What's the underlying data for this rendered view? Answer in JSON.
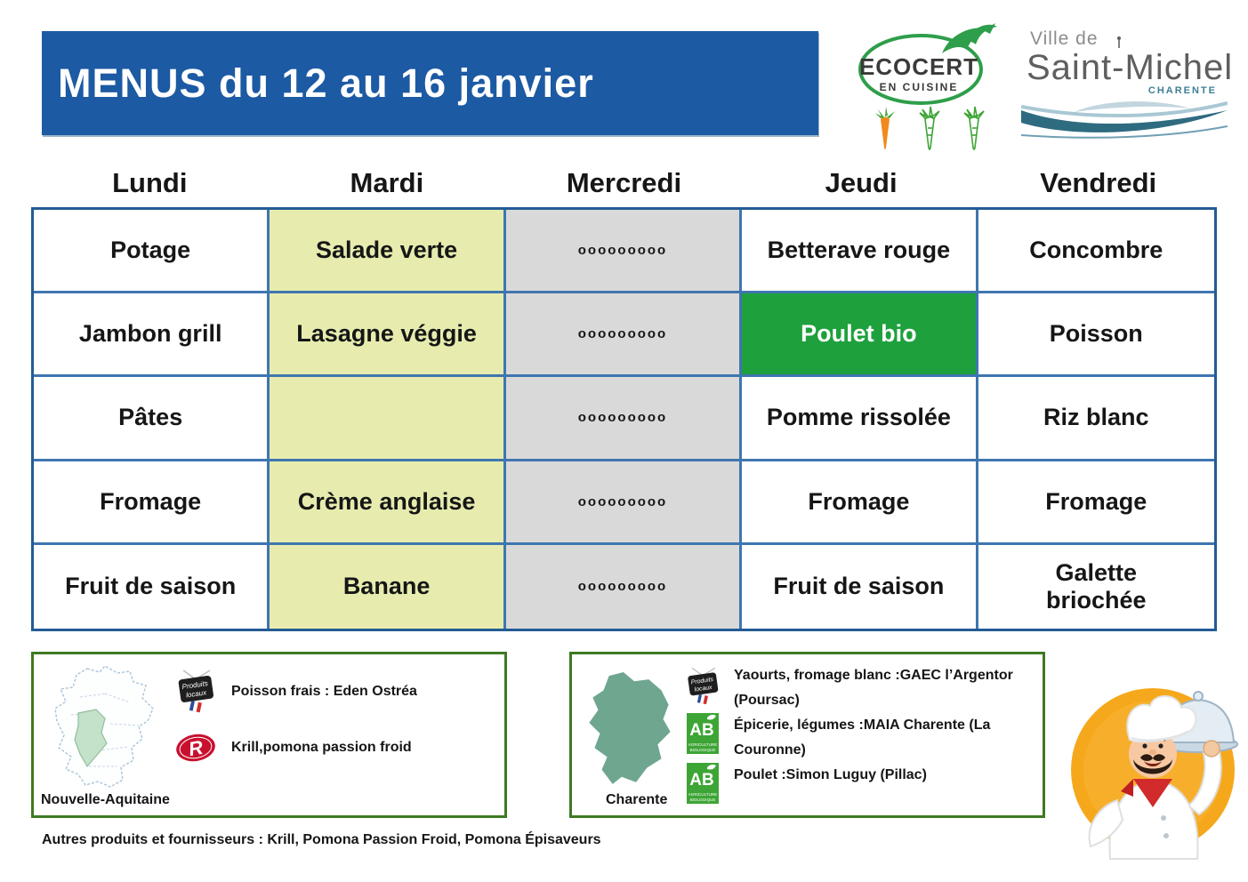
{
  "header": {
    "title": "MENUS du 12 au 16 janvier",
    "title_bg_color": "#1C5AA3",
    "ecocert_logo": {
      "name": "ECOCERT",
      "subtitle": "EN CUISINE",
      "green": "#2E9E4A",
      "text_color": "#3A3A38"
    },
    "carrots": {
      "count": 3,
      "filled": 1,
      "filled_color": "#F08A1D",
      "outline_color": "#3DA535"
    },
    "city_logo": {
      "line1": "Ville de",
      "line2": "Saint-Michel",
      "line3": "CHARENTE",
      "teal": "#2F6B80",
      "light_blue": "#A9C8D4"
    }
  },
  "menu": {
    "outer_border_color": "#235C94",
    "grid_line_color": "#3F76B0",
    "days": [
      {
        "label": "Lundi",
        "bg": "#FFFFFF",
        "items": [
          "Potage",
          "Jambon grill",
          "Pâtes",
          "Fromage",
          "Fruit de saison"
        ]
      },
      {
        "label": "Mardi",
        "bg": "#E7ECAE",
        "items": [
          "Salade verte",
          "Lasagne véggie",
          "",
          "Crème anglaise",
          "Banane"
        ]
      },
      {
        "label": "Mercredi",
        "bg": "#D9D9D9",
        "small_text": true,
        "items": [
          "ooooooooo",
          "ooooooooo",
          "ooooooooo",
          "ooooooooo",
          "ooooooooo"
        ]
      },
      {
        "label": "Jeudi",
        "bg": "#FFFFFF",
        "items": [
          "Betterave rouge",
          "Poulet bio",
          "Pomme rissolée",
          "Fromage",
          "Fruit de saison"
        ],
        "highlight": {
          "row": 1,
          "bg": "#1EA03C",
          "color": "#FFFFFF"
        }
      },
      {
        "label": "Vendredi",
        "bg": "#FFFFFF",
        "items": [
          "Concombre",
          "Poisson",
          "Riz blanc",
          "Fromage",
          "Galette\nbriochée"
        ]
      }
    ]
  },
  "suppliers": {
    "box_border_color": "#3E7A21",
    "left": {
      "region": "Nouvelle-Aquitaine",
      "items": [
        {
          "icon": "produits-locaux-icon",
          "text": "Poisson frais : Eden Ostréa"
        },
        {
          "icon": "label-rouge-icon",
          "text": "Krill,pomona passion froid"
        }
      ]
    },
    "right": {
      "region": "Charente",
      "items": [
        {
          "icon": "produits-locaux-icon",
          "text": "Yaourts, fromage blanc :GAEC l’Argentor (Poursac)"
        },
        {
          "icon": "ab-icon",
          "text": "Épicerie, légumes :MAIA Charente (La Couronne)"
        },
        {
          "icon": "ab-icon",
          "text": "Poulet :Simon Luguy (Pillac)"
        }
      ]
    },
    "labels": {
      "produits_locaux_line1": "Produits",
      "produits_locaux_line2": "locaux",
      "ab": "AB",
      "ab_caption1": "AGRICULTURE",
      "ab_caption2": "BIOLOGIQUE"
    }
  },
  "footer_note": "Autres produits et fournisseurs : Krill, Pomona Passion Froid, Pomona Épisaveurs",
  "icons": {
    "ecocert-swallow-icon": "green swallow bird",
    "carrot-icon": "carrot (1 filled orange, 2 green outlines)",
    "city-wave-icon": "stylised river waves",
    "france-map-icon": "France map with Nouvelle-Aquitaine highlighted",
    "charente-map-icon": "Charente department silhouette",
    "produits-locaux-icon": "hanging chalkboard sign 'Produits locaux' with French flag",
    "label-rouge-icon": "Label Rouge red oval with white R",
    "ab-icon": "AB Agriculture Biologique green label",
    "chef-illustration": "cartoon chef holding a silver cloche on yellow circle"
  }
}
